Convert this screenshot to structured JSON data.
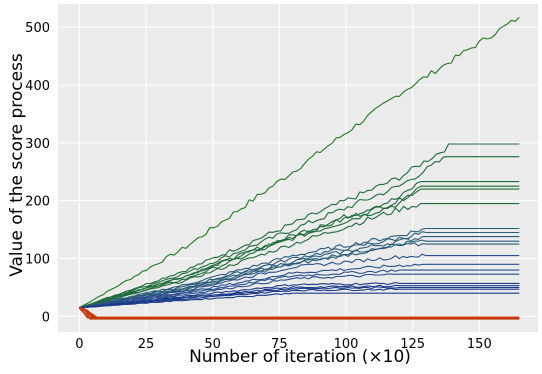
{
  "chart_data": {
    "type": "line",
    "title": "",
    "xlabel": "Number of iteration (×10)",
    "ylabel": "Value of the score process",
    "xlim": [
      -8,
      172
    ],
    "ylim": [
      -27,
      540
    ],
    "xticks": [
      "0",
      "25",
      "50",
      "75",
      "100",
      "125",
      "150"
    ],
    "yticks": [
      "0",
      "100",
      "200",
      "300",
      "400",
      "500"
    ],
    "grid": true,
    "background": "#ebebeb",
    "legend": "none",
    "series": [
      {
        "color": "#1e7a1e",
        "points": [
          [
            0,
            15
          ],
          [
            40,
            120
          ],
          [
            80,
            250
          ],
          [
            120,
            385
          ],
          [
            165,
            517
          ]
        ]
      },
      {
        "color": "#1f6b3a",
        "points": [
          [
            0,
            15
          ],
          [
            40,
            80
          ],
          [
            80,
            160
          ],
          [
            120,
            240
          ],
          [
            140,
            298
          ],
          [
            165,
            298
          ]
        ]
      },
      {
        "color": "#1f6b3a",
        "points": [
          [
            0,
            15
          ],
          [
            40,
            75
          ],
          [
            80,
            150
          ],
          [
            120,
            225
          ],
          [
            138,
            276
          ],
          [
            165,
            276
          ]
        ]
      },
      {
        "color": "#1f6b3a",
        "points": [
          [
            0,
            15
          ],
          [
            40,
            70
          ],
          [
            80,
            140
          ],
          [
            120,
            205
          ],
          [
            128,
            233
          ],
          [
            165,
            233
          ]
        ]
      },
      {
        "color": "#1f6b3a",
        "points": [
          [
            0,
            15
          ],
          [
            40,
            70
          ],
          [
            80,
            138
          ],
          [
            120,
            200
          ],
          [
            128,
            225
          ],
          [
            165,
            225
          ]
        ]
      },
      {
        "color": "#1f6b3a",
        "points": [
          [
            0,
            15
          ],
          [
            40,
            65
          ],
          [
            80,
            135
          ],
          [
            120,
            195
          ],
          [
            128,
            220
          ],
          [
            165,
            220
          ]
        ]
      },
      {
        "color": "#1f6b3a",
        "points": [
          [
            0,
            15
          ],
          [
            40,
            62
          ],
          [
            80,
            125
          ],
          [
            120,
            185
          ],
          [
            128,
            195
          ],
          [
            165,
            195
          ]
        ]
      },
      {
        "color": "#2a5c7a",
        "points": [
          [
            0,
            15
          ],
          [
            40,
            55
          ],
          [
            80,
            105
          ],
          [
            120,
            140
          ],
          [
            130,
            152
          ],
          [
            165,
            152
          ]
        ]
      },
      {
        "color": "#2a5c7a",
        "points": [
          [
            0,
            15
          ],
          [
            40,
            52
          ],
          [
            80,
            100
          ],
          [
            120,
            135
          ],
          [
            130,
            145
          ],
          [
            165,
            145
          ]
        ]
      },
      {
        "color": "#2a5c7a",
        "points": [
          [
            0,
            15
          ],
          [
            40,
            50
          ],
          [
            80,
            95
          ],
          [
            120,
            130
          ],
          [
            130,
            138
          ],
          [
            165,
            138
          ]
        ]
      },
      {
        "color": "#2a5c7a",
        "points": [
          [
            0,
            15
          ],
          [
            40,
            48
          ],
          [
            80,
            92
          ],
          [
            120,
            125
          ],
          [
            130,
            130
          ],
          [
            165,
            130
          ]
        ]
      },
      {
        "color": "#2a5c7a",
        "points": [
          [
            0,
            15
          ],
          [
            40,
            46
          ],
          [
            80,
            90
          ],
          [
            120,
            122
          ],
          [
            130,
            125
          ],
          [
            165,
            125
          ]
        ]
      },
      {
        "color": "#2a4f8f",
        "points": [
          [
            0,
            15
          ],
          [
            40,
            45
          ],
          [
            80,
            85
          ],
          [
            120,
            103
          ],
          [
            130,
            105
          ],
          [
            165,
            105
          ]
        ]
      },
      {
        "color": "#2a4f8f",
        "points": [
          [
            0,
            15
          ],
          [
            40,
            42
          ],
          [
            80,
            75
          ],
          [
            120,
            88
          ],
          [
            130,
            90
          ],
          [
            165,
            90
          ]
        ]
      },
      {
        "color": "#2a4f8f",
        "points": [
          [
            0,
            15
          ],
          [
            40,
            40
          ],
          [
            80,
            70
          ],
          [
            120,
            80
          ],
          [
            130,
            80
          ],
          [
            165,
            80
          ]
        ]
      },
      {
        "color": "#2a4f8f",
        "points": [
          [
            0,
            15
          ],
          [
            40,
            38
          ],
          [
            80,
            65
          ],
          [
            120,
            73
          ],
          [
            130,
            73
          ],
          [
            165,
            73
          ]
        ]
      },
      {
        "color": "#1b3a8a",
        "points": [
          [
            0,
            15
          ],
          [
            40,
            35
          ],
          [
            80,
            55
          ],
          [
            120,
            57
          ],
          [
            165,
            57
          ]
        ]
      },
      {
        "color": "#1b3a8a",
        "points": [
          [
            0,
            15
          ],
          [
            40,
            33
          ],
          [
            80,
            50
          ],
          [
            120,
            53
          ],
          [
            165,
            53
          ]
        ]
      },
      {
        "color": "#1b3a8a",
        "points": [
          [
            0,
            15
          ],
          [
            40,
            32
          ],
          [
            80,
            48
          ],
          [
            120,
            50
          ],
          [
            165,
            50
          ]
        ]
      },
      {
        "color": "#1b3a8a",
        "points": [
          [
            0,
            15
          ],
          [
            40,
            30
          ],
          [
            80,
            45
          ],
          [
            120,
            47
          ],
          [
            165,
            47
          ]
        ]
      },
      {
        "color": "#1b3a8a",
        "points": [
          [
            0,
            15
          ],
          [
            40,
            28
          ],
          [
            80,
            40
          ],
          [
            120,
            40
          ],
          [
            165,
            40
          ]
        ]
      },
      {
        "color": "#c43a10",
        "points": [
          [
            0,
            15
          ],
          [
            3,
            8
          ],
          [
            5,
            -2
          ],
          [
            165,
            -2
          ]
        ]
      },
      {
        "color": "#c43a10",
        "points": [
          [
            0,
            15
          ],
          [
            3,
            10
          ],
          [
            6,
            -3
          ],
          [
            165,
            -3
          ]
        ]
      },
      {
        "color": "#c43a10",
        "points": [
          [
            0,
            15
          ],
          [
            2,
            12
          ],
          [
            4,
            -4
          ],
          [
            165,
            -4
          ]
        ]
      },
      {
        "color": "#c43a10",
        "points": [
          [
            0,
            15
          ],
          [
            4,
            6
          ],
          [
            7,
            -3
          ],
          [
            165,
            -3
          ]
        ]
      },
      {
        "color": "#c43a10",
        "points": [
          [
            0,
            15
          ],
          [
            2,
            5
          ],
          [
            3,
            -2
          ],
          [
            165,
            -2
          ]
        ]
      }
    ]
  }
}
